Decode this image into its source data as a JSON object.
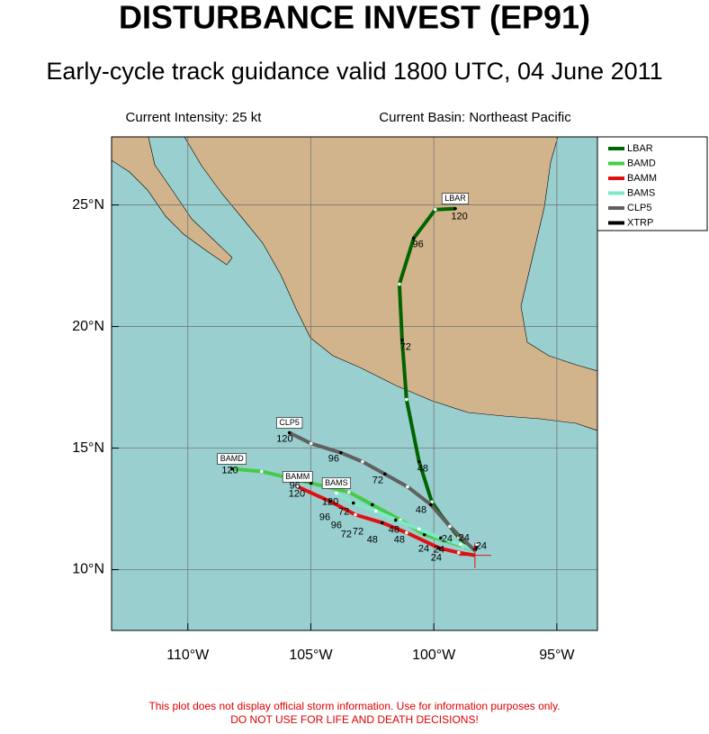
{
  "header": {
    "title": "DISTURBANCE INVEST (EP91)",
    "subtitle": "Early-cycle track guidance valid 1800 UTC, 04 June 2011",
    "intensity": "Current Intensity: 25 kt",
    "basin": "Current Basin: Northeast Pacific"
  },
  "chart_data": {
    "type": "track_map",
    "xlim": [
      -113.1,
      -93.35
    ],
    "ylim": [
      7.5,
      27.8
    ],
    "xticks": [
      {
        "value": -110,
        "label": "110°W"
      },
      {
        "value": -105,
        "label": "105°W"
      },
      {
        "value": -100,
        "label": "100°W"
      },
      {
        "value": -95,
        "label": "95°W"
      }
    ],
    "yticks": [
      {
        "value": 10,
        "label": "10°N"
      },
      {
        "value": 15,
        "label": "15°N"
      },
      {
        "value": 20,
        "label": "20°N"
      },
      {
        "value": 25,
        "label": "25°N"
      }
    ],
    "grid": true,
    "series": [
      {
        "name": "LBAR",
        "color": "#006400",
        "end_label": true,
        "x": [
          -98.33,
          -98.99,
          -99.64,
          -100.08,
          -100.6,
          -101.11,
          -101.29,
          -101.4,
          -100.82,
          -99.94,
          -99.13
        ],
        "values": [
          10.78,
          11.33,
          12.15,
          12.78,
          14.44,
          17.0,
          19.44,
          21.74,
          23.63,
          24.81,
          24.85
        ]
      },
      {
        "name": "BAMD",
        "color": "#44cc44",
        "end_label": true,
        "x": [
          -98.33,
          -98.8,
          -100.38,
          -101.36,
          -102.5,
          -103.45,
          -104.99,
          -107.0,
          -108.21
        ],
        "values": [
          10.78,
          10.96,
          11.44,
          12.04,
          12.67,
          13.19,
          13.56,
          14.04,
          14.15
        ]
      },
      {
        "name": "BAMM",
        "color": "#e01010",
        "end_label": true,
        "x": [
          -98.33,
          -98.99,
          -99.79,
          -101.11,
          -102.1,
          -103.19,
          -104.22,
          -105.54
        ],
        "values": [
          10.59,
          10.7,
          10.89,
          11.52,
          11.93,
          12.26,
          12.81,
          13.41
        ]
      },
      {
        "name": "BAMS",
        "color": "#80e8c8",
        "end_label": true,
        "x": [
          -98.33,
          -98.91,
          -99.72,
          -100.6,
          -101.55,
          -102.35,
          -103.27,
          -103.96
        ],
        "values": [
          10.78,
          11.04,
          11.3,
          11.67,
          12.04,
          12.41,
          12.74,
          13.15
        ]
      },
      {
        "name": "CLP5",
        "color": "#606060",
        "end_label": true,
        "x": [
          -98.33,
          -99.35,
          -100.12,
          -101.07,
          -101.99,
          -102.9,
          -103.78,
          -104.99,
          -105.87
        ],
        "values": [
          10.78,
          11.78,
          12.67,
          13.41,
          13.93,
          14.44,
          14.81,
          15.19,
          15.63
        ]
      },
      {
        "name": "XTRP",
        "color": "#000000",
        "end_label": false,
        "x": [
          -98.33,
          -98.26
        ],
        "values": [
          10.78,
          11.04
        ]
      }
    ],
    "annotations": [
      {
        "text": "24",
        "x": -98.07,
        "y": 10.96
      },
      {
        "text": "48",
        "x": -100.45,
        "y": 14.15
      },
      {
        "text": "72",
        "x": -101.15,
        "y": 19.15
      },
      {
        "text": "96",
        "x": -100.64,
        "y": 23.37
      },
      {
        "text": "120",
        "x": -98.96,
        "y": 24.52
      },
      {
        "text": "120",
        "x": -108.29,
        "y": 14.07
      },
      {
        "text": "120",
        "x": -106.06,
        "y": 15.37
      },
      {
        "text": "96",
        "x": -104.07,
        "y": 14.55
      },
      {
        "text": "72",
        "x": -102.28,
        "y": 13.67
      },
      {
        "text": "48",
        "x": -100.52,
        "y": 12.45
      },
      {
        "text": "24",
        "x": -99.46,
        "y": 11.26
      },
      {
        "text": "96",
        "x": -105.65,
        "y": 13.44
      },
      {
        "text": "120",
        "x": -105.57,
        "y": 13.11
      },
      {
        "text": "120",
        "x": -104.21,
        "y": 12.78
      },
      {
        "text": "72",
        "x": -103.66,
        "y": 12.37
      },
      {
        "text": "96",
        "x": -104.43,
        "y": 12.15
      },
      {
        "text": "96",
        "x": -103.96,
        "y": 11.81
      },
      {
        "text": "72",
        "x": -103.08,
        "y": 11.56
      },
      {
        "text": "72",
        "x": -103.56,
        "y": 11.44
      },
      {
        "text": "48",
        "x": -101.62,
        "y": 11.63
      },
      {
        "text": "48",
        "x": -102.5,
        "y": 11.22
      },
      {
        "text": "48",
        "x": -101.4,
        "y": 11.22
      },
      {
        "text": "24",
        "x": -100.41,
        "y": 10.85
      },
      {
        "text": "24",
        "x": -99.9,
        "y": 10.48
      },
      {
        "text": "24",
        "x": -99.79,
        "y": 10.81
      },
      {
        "text": "24",
        "x": -98.77,
        "y": 11.3
      }
    ]
  },
  "footer": [
    "This plot does not display official storm information. Use for information purposes only.",
    "DO NOT USE FOR LIFE AND DEATH DECISIONS!"
  ]
}
